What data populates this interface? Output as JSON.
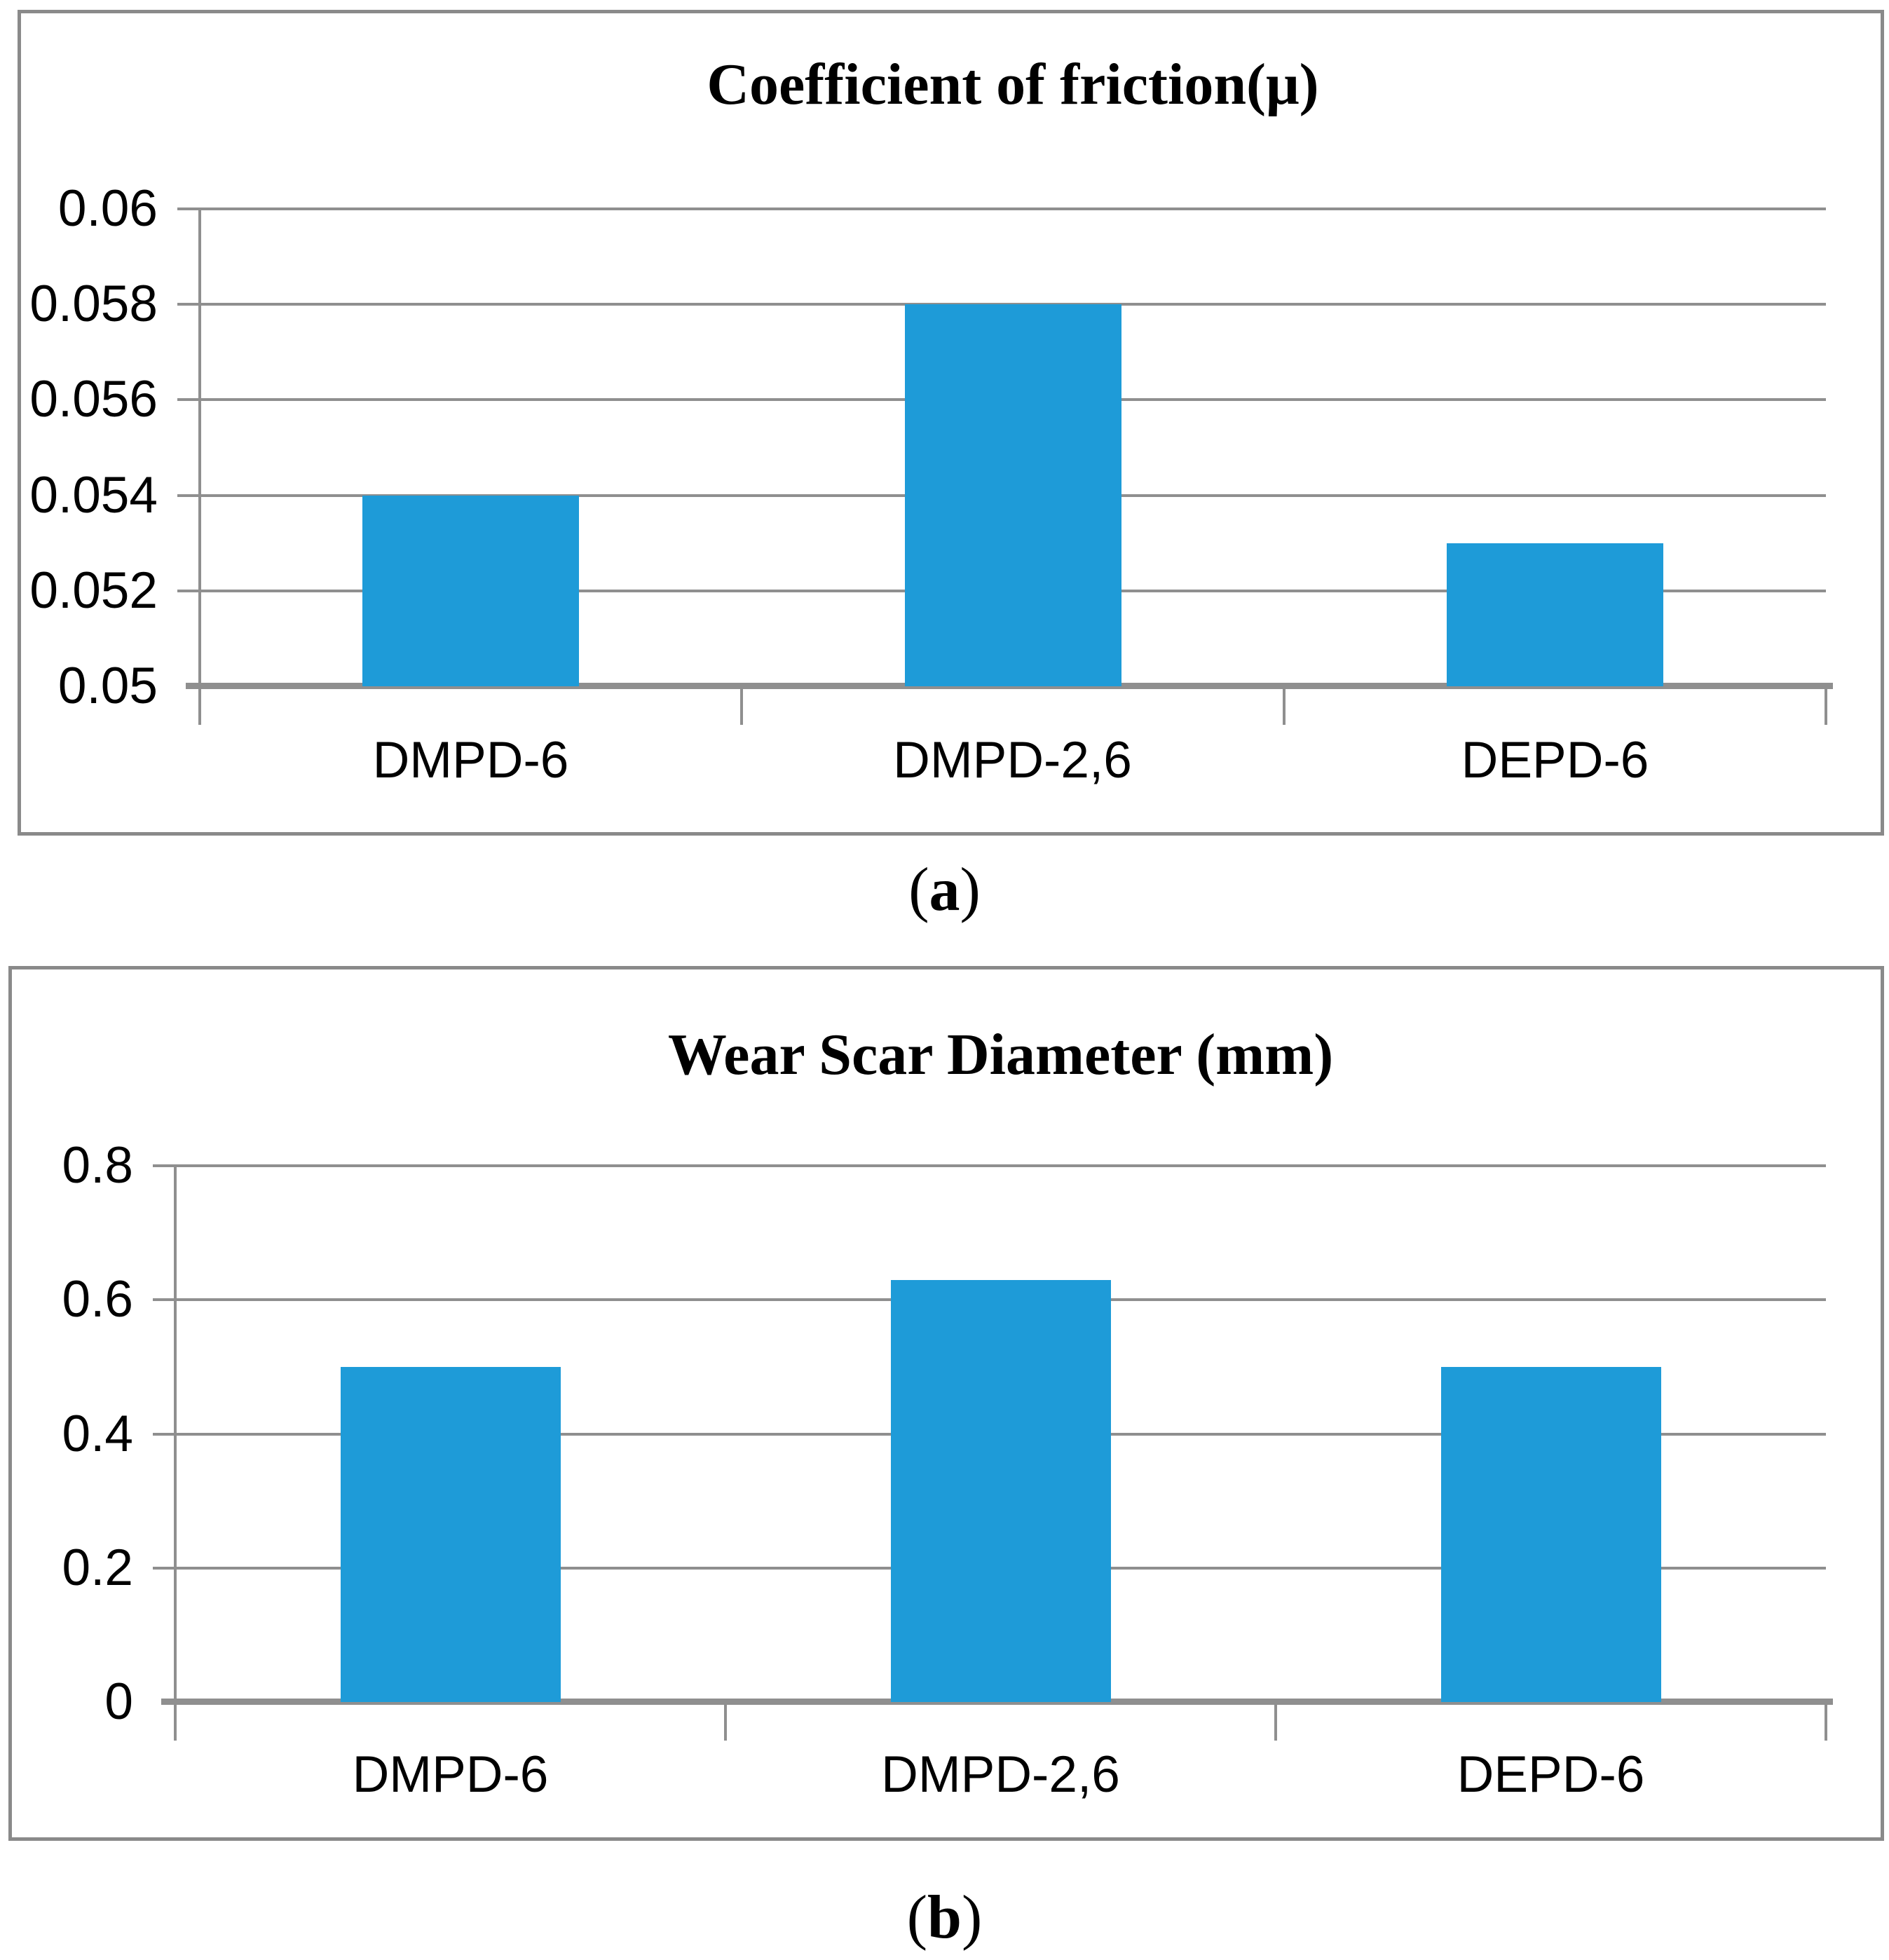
{
  "colors": {
    "bar": "#1E9BD8",
    "gridline": "#8F8F8F",
    "axis": "#8F8F8F",
    "frame": "#8A8A8A",
    "text": "#000000",
    "background": "#FFFFFF"
  },
  "captions": {
    "a": {
      "open": "(",
      "letter": "a",
      "close": ")"
    },
    "b": {
      "open": "(",
      "letter": "b",
      "close": ")"
    }
  },
  "chart_data": [
    {
      "type": "bar",
      "title": "Coefficient of friction(μ)",
      "categories": [
        "DMPD-6",
        "DMPD-2,6",
        "DEPD-6"
      ],
      "values": [
        0.054,
        0.058,
        0.053
      ],
      "ylim": [
        0.05,
        0.06
      ],
      "yticks": [
        "0.06",
        "0.058",
        "0.056",
        "0.054",
        "0.052",
        "0.05"
      ],
      "xlabel": "",
      "ylabel": "",
      "grid": true,
      "legend_position": "none",
      "bar_color": "#1E9BD8",
      "panel_label": "(a)"
    },
    {
      "type": "bar",
      "title": "Wear Scar Diameter (mm)",
      "categories": [
        "DMPD-6",
        "DMPD-2,6",
        "DEPD-6"
      ],
      "values": [
        0.5,
        0.63,
        0.5
      ],
      "ylim": [
        0,
        0.8
      ],
      "yticks": [
        "0.8",
        "0.6",
        "0.4",
        "0.2",
        "0"
      ],
      "xlabel": "",
      "ylabel": "",
      "grid": true,
      "legend_position": "none",
      "bar_color": "#1E9BD8",
      "panel_label": "(b)"
    }
  ]
}
